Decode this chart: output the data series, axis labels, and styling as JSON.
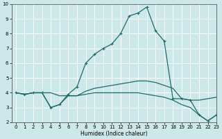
{
  "xlabel": "Humidex (Indice chaleur)",
  "xlim": [
    -0.5,
    23
  ],
  "ylim": [
    2,
    10
  ],
  "xticks": [
    0,
    1,
    2,
    3,
    4,
    5,
    6,
    7,
    8,
    9,
    10,
    11,
    12,
    13,
    14,
    15,
    16,
    17,
    18,
    19,
    20,
    21,
    22,
    23
  ],
  "yticks": [
    2,
    3,
    4,
    5,
    6,
    7,
    8,
    9,
    10
  ],
  "bg_color": "#cce8e8",
  "line_color": "#1c6b6b",
  "grid_color": "#b8d8d8",
  "series": [
    {
      "x": [
        0,
        1,
        2,
        3,
        4,
        5,
        6,
        7,
        8,
        9,
        10,
        11,
        12,
        13,
        14,
        15,
        16,
        17,
        18,
        19,
        20,
        21,
        22,
        23
      ],
      "y": [
        4.0,
        3.9,
        4.0,
        4.0,
        4.0,
        3.8,
        3.8,
        3.8,
        4.1,
        4.3,
        4.4,
        4.5,
        4.6,
        4.7,
        4.8,
        4.8,
        4.7,
        4.5,
        4.3,
        3.6,
        3.5,
        3.5,
        3.6,
        3.7
      ],
      "marker": false
    },
    {
      "x": [
        0,
        1,
        2,
        3,
        4,
        5,
        6,
        7,
        8,
        9,
        10,
        11,
        12,
        13,
        14,
        15,
        16,
        17,
        18,
        19,
        20,
        21,
        22,
        23
      ],
      "y": [
        4.0,
        3.9,
        4.0,
        4.0,
        3.0,
        3.2,
        3.9,
        4.4,
        6.0,
        6.6,
        7.0,
        7.3,
        8.0,
        9.2,
        9.4,
        9.8,
        8.2,
        7.5,
        3.6,
        3.6,
        3.5,
        2.5,
        2.1,
        2.5
      ],
      "marker": true
    },
    {
      "x": [
        0,
        1,
        2,
        3,
        4,
        5,
        6,
        7,
        8,
        9,
        10,
        11,
        12,
        13,
        14,
        15,
        16,
        17,
        18,
        19,
        20,
        21,
        22,
        23
      ],
      "y": [
        4.0,
        3.9,
        4.0,
        4.0,
        3.0,
        3.2,
        3.8,
        3.8,
        3.9,
        4.0,
        4.0,
        4.0,
        4.0,
        4.0,
        4.0,
        3.9,
        3.8,
        3.7,
        3.5,
        3.2,
        3.0,
        2.5,
        2.1,
        2.5
      ],
      "marker": false
    }
  ]
}
